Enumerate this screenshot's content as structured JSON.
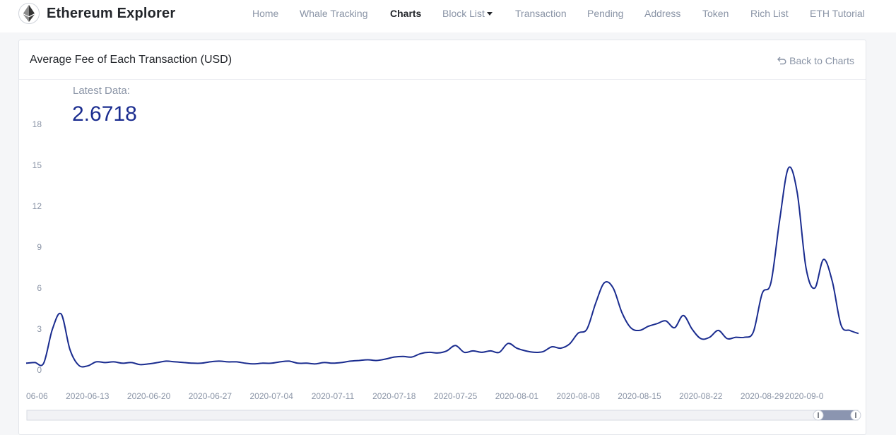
{
  "header": {
    "brand": "Ethereum Explorer",
    "nav": [
      {
        "label": "Home",
        "active": false
      },
      {
        "label": "Whale Tracking",
        "active": false
      },
      {
        "label": "Charts",
        "active": true
      },
      {
        "label": "Block List",
        "active": false,
        "dropdown": true
      },
      {
        "label": "Transaction",
        "active": false
      },
      {
        "label": "Pending",
        "active": false
      },
      {
        "label": "Address",
        "active": false
      },
      {
        "label": "Token",
        "active": false
      },
      {
        "label": "Rich List",
        "active": false
      },
      {
        "label": "ETH Tutorial",
        "active": false
      }
    ]
  },
  "card": {
    "title": "Average Fee of Each Transaction (USD)",
    "back_label": "Back to Charts",
    "latest_label": "Latest Data:",
    "latest_value": "2.6718"
  },
  "colors": {
    "line": "#1a2c8f",
    "grid_text": "#8a94a6",
    "slider": "#8b95b0"
  },
  "icons": {
    "logo": "ethereum-diamond-icon",
    "back": "undo-arrow-icon"
  },
  "chart_data": {
    "type": "line",
    "title": "Average Fee of Each Transaction (USD)",
    "xlabel": "",
    "ylabel": "",
    "ylim": [
      0,
      18
    ],
    "yticks": [
      0,
      3,
      6,
      9,
      12,
      15,
      18
    ],
    "grid": false,
    "legend": "none",
    "xtick_labels": [
      "06-06",
      "2020-06-13",
      "2020-06-20",
      "2020-06-27",
      "2020-07-04",
      "2020-07-11",
      "2020-07-18",
      "2020-07-25",
      "2020-08-01",
      "2020-08-08",
      "2020-08-15",
      "2020-08-22",
      "2020-08-29",
      "2020-09-0"
    ],
    "dates": [
      "2020-06-06",
      "2020-06-07",
      "2020-06-08",
      "2020-06-09",
      "2020-06-10",
      "2020-06-11",
      "2020-06-12",
      "2020-06-13",
      "2020-06-14",
      "2020-06-15",
      "2020-06-16",
      "2020-06-17",
      "2020-06-18",
      "2020-06-19",
      "2020-06-20",
      "2020-06-21",
      "2020-06-22",
      "2020-06-23",
      "2020-06-24",
      "2020-06-25",
      "2020-06-26",
      "2020-06-27",
      "2020-06-28",
      "2020-06-29",
      "2020-06-30",
      "2020-07-01",
      "2020-07-02",
      "2020-07-03",
      "2020-07-04",
      "2020-07-05",
      "2020-07-06",
      "2020-07-07",
      "2020-07-08",
      "2020-07-09",
      "2020-07-10",
      "2020-07-11",
      "2020-07-12",
      "2020-07-13",
      "2020-07-14",
      "2020-07-15",
      "2020-07-16",
      "2020-07-17",
      "2020-07-18",
      "2020-07-19",
      "2020-07-20",
      "2020-07-21",
      "2020-07-22",
      "2020-07-23",
      "2020-07-24",
      "2020-07-25",
      "2020-07-26",
      "2020-07-27",
      "2020-07-28",
      "2020-07-29",
      "2020-07-30",
      "2020-07-31",
      "2020-08-01",
      "2020-08-02",
      "2020-08-03",
      "2020-08-04",
      "2020-08-05",
      "2020-08-06",
      "2020-08-07",
      "2020-08-08",
      "2020-08-09",
      "2020-08-10",
      "2020-08-11",
      "2020-08-12",
      "2020-08-13",
      "2020-08-14",
      "2020-08-15",
      "2020-08-16",
      "2020-08-17",
      "2020-08-18",
      "2020-08-19",
      "2020-08-20",
      "2020-08-21",
      "2020-08-22",
      "2020-08-23",
      "2020-08-24",
      "2020-08-25",
      "2020-08-26",
      "2020-08-27",
      "2020-08-28",
      "2020-08-29",
      "2020-08-30",
      "2020-08-31",
      "2020-09-01",
      "2020-09-02",
      "2020-09-03",
      "2020-09-04",
      "2020-09-05",
      "2020-09-06",
      "2020-09-07",
      "2020-09-08",
      "2020-09-09"
    ],
    "values": [
      0.5,
      0.55,
      0.5,
      3.0,
      4.1,
      1.5,
      0.35,
      0.3,
      0.6,
      0.55,
      0.6,
      0.5,
      0.55,
      0.4,
      0.45,
      0.55,
      0.65,
      0.6,
      0.55,
      0.5,
      0.5,
      0.6,
      0.65,
      0.6,
      0.6,
      0.5,
      0.45,
      0.5,
      0.5,
      0.6,
      0.65,
      0.5,
      0.5,
      0.45,
      0.55,
      0.5,
      0.55,
      0.65,
      0.7,
      0.75,
      0.7,
      0.8,
      0.95,
      1.0,
      0.95,
      1.2,
      1.3,
      1.25,
      1.4,
      1.8,
      1.3,
      1.4,
      1.3,
      1.4,
      1.3,
      1.95,
      1.6,
      1.4,
      1.3,
      1.35,
      1.7,
      1.6,
      1.9,
      2.7,
      3.0,
      4.9,
      6.4,
      6.0,
      4.2,
      3.1,
      2.9,
      3.2,
      3.4,
      3.6,
      3.1,
      4.0,
      3.0,
      2.3,
      2.4,
      2.9,
      2.3,
      2.4,
      2.4,
      2.8,
      5.6,
      6.4,
      11.0,
      14.8,
      13.0,
      7.5,
      6.0,
      8.1,
      6.5,
      3.3,
      2.9,
      2.6718
    ],
    "series": [
      {
        "values_ref": "values"
      }
    ]
  }
}
